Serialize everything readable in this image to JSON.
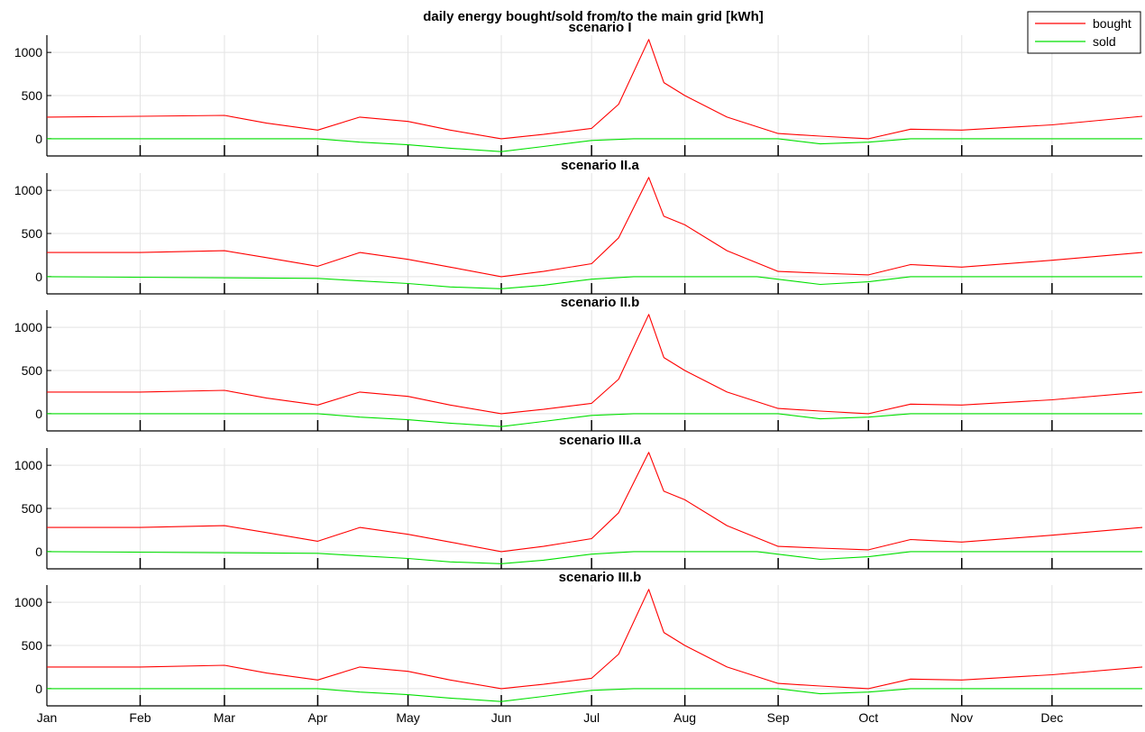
{
  "figure_title": "daily energy bought/sold from/to the main grid [kWh]",
  "legend": [
    {
      "label": "bought",
      "color": "#ff0000"
    },
    {
      "label": "sold",
      "color": "#00e000"
    }
  ],
  "x_ticks": [
    "Jan",
    "Feb",
    "Mar",
    "Apr",
    "May",
    "Jun",
    "Jul",
    "Aug",
    "Sep",
    "Oct",
    "Nov",
    "Dec"
  ],
  "y_ticks": [
    "0",
    "500",
    "1000"
  ],
  "chart_data": [
    {
      "type": "line",
      "title": "scenario I",
      "ylim": [
        -200,
        1200
      ],
      "yticks": [
        0,
        500,
        1000
      ],
      "grid": true,
      "legend_position": "top-right",
      "x_unit": "month",
      "xlim": [
        "2021-01-01",
        "2021-12-31"
      ],
      "series": [
        {
          "name": "bought",
          "color": "#ff0000",
          "x": [
            "2021-01-01",
            "2021-02-01",
            "2021-03-01",
            "2021-03-15",
            "2021-04-01",
            "2021-04-15",
            "2021-05-01",
            "2021-05-15",
            "2021-06-01",
            "2021-06-15",
            "2021-07-01",
            "2021-07-10",
            "2021-07-20",
            "2021-07-25",
            "2021-08-01",
            "2021-08-15",
            "2021-09-01",
            "2021-09-15",
            "2021-10-01",
            "2021-10-15",
            "2021-11-01",
            "2021-12-01",
            "2021-12-31"
          ],
          "y": [
            250,
            260,
            270,
            180,
            100,
            250,
            200,
            100,
            0,
            50,
            120,
            400,
            1150,
            650,
            500,
            250,
            60,
            30,
            0,
            110,
            100,
            160,
            260
          ]
        },
        {
          "name": "sold",
          "color": "#00e000",
          "x": [
            "2021-01-01",
            "2021-04-01",
            "2021-04-15",
            "2021-05-01",
            "2021-05-15",
            "2021-06-01",
            "2021-06-15",
            "2021-07-01",
            "2021-07-15",
            "2021-09-01",
            "2021-09-15",
            "2021-10-01",
            "2021-10-15",
            "2021-12-31"
          ],
          "y": [
            0,
            0,
            -40,
            -70,
            -110,
            -150,
            -90,
            -20,
            0,
            0,
            -60,
            -40,
            0,
            0
          ]
        }
      ]
    },
    {
      "type": "line",
      "title": "scenario II.a",
      "ylim": [
        -200,
        1200
      ],
      "yticks": [
        0,
        500,
        1000
      ],
      "grid": true,
      "x_unit": "month",
      "xlim": [
        "2021-01-01",
        "2021-12-31"
      ],
      "series": [
        {
          "name": "bought",
          "color": "#ff0000",
          "x": [
            "2021-01-01",
            "2021-02-01",
            "2021-03-01",
            "2021-03-15",
            "2021-04-01",
            "2021-04-15",
            "2021-05-01",
            "2021-05-15",
            "2021-06-01",
            "2021-06-15",
            "2021-07-01",
            "2021-07-10",
            "2021-07-20",
            "2021-07-25",
            "2021-08-01",
            "2021-08-15",
            "2021-09-01",
            "2021-09-15",
            "2021-10-01",
            "2021-10-15",
            "2021-11-01",
            "2021-12-01",
            "2021-12-31"
          ],
          "y": [
            280,
            280,
            300,
            220,
            120,
            280,
            200,
            110,
            0,
            60,
            150,
            450,
            1150,
            700,
            600,
            300,
            60,
            40,
            20,
            140,
            110,
            190,
            280
          ]
        },
        {
          "name": "sold",
          "color": "#00e000",
          "x": [
            "2021-01-01",
            "2021-04-01",
            "2021-04-15",
            "2021-05-01",
            "2021-05-15",
            "2021-06-01",
            "2021-06-15",
            "2021-07-01",
            "2021-07-15",
            "2021-08-25",
            "2021-09-15",
            "2021-10-01",
            "2021-10-15",
            "2021-12-31"
          ],
          "y": [
            0,
            -20,
            -50,
            -80,
            -120,
            -140,
            -100,
            -30,
            0,
            0,
            -90,
            -60,
            0,
            0
          ]
        }
      ]
    },
    {
      "type": "line",
      "title": "scenario II.b",
      "ylim": [
        -200,
        1200
      ],
      "yticks": [
        0,
        500,
        1000
      ],
      "grid": true,
      "x_unit": "month",
      "xlim": [
        "2021-01-01",
        "2021-12-31"
      ],
      "series": [
        {
          "name": "bought",
          "color": "#ff0000",
          "x": [
            "2021-01-01",
            "2021-02-01",
            "2021-03-01",
            "2021-03-15",
            "2021-04-01",
            "2021-04-15",
            "2021-05-01",
            "2021-05-15",
            "2021-06-01",
            "2021-06-15",
            "2021-07-01",
            "2021-07-10",
            "2021-07-20",
            "2021-07-25",
            "2021-08-01",
            "2021-08-15",
            "2021-09-01",
            "2021-09-15",
            "2021-10-01",
            "2021-10-15",
            "2021-11-01",
            "2021-12-01",
            "2021-12-31"
          ],
          "y": [
            250,
            250,
            270,
            180,
            100,
            250,
            200,
            100,
            0,
            50,
            120,
            400,
            1150,
            650,
            500,
            250,
            60,
            30,
            0,
            110,
            100,
            160,
            250
          ]
        },
        {
          "name": "sold",
          "color": "#00e000",
          "x": [
            "2021-01-01",
            "2021-04-01",
            "2021-04-15",
            "2021-05-01",
            "2021-05-15",
            "2021-06-01",
            "2021-06-15",
            "2021-07-01",
            "2021-07-15",
            "2021-09-01",
            "2021-09-15",
            "2021-10-01",
            "2021-10-15",
            "2021-12-31"
          ],
          "y": [
            0,
            0,
            -40,
            -70,
            -110,
            -150,
            -90,
            -20,
            0,
            0,
            -60,
            -40,
            0,
            0
          ]
        }
      ]
    },
    {
      "type": "line",
      "title": "scenario III.a",
      "ylim": [
        -200,
        1200
      ],
      "yticks": [
        0,
        500,
        1000
      ],
      "grid": true,
      "x_unit": "month",
      "xlim": [
        "2021-01-01",
        "2021-12-31"
      ],
      "series": [
        {
          "name": "bought",
          "color": "#ff0000",
          "x": [
            "2021-01-01",
            "2021-02-01",
            "2021-03-01",
            "2021-03-15",
            "2021-04-01",
            "2021-04-15",
            "2021-05-01",
            "2021-05-15",
            "2021-06-01",
            "2021-06-15",
            "2021-07-01",
            "2021-07-10",
            "2021-07-20",
            "2021-07-25",
            "2021-08-01",
            "2021-08-15",
            "2021-09-01",
            "2021-09-15",
            "2021-10-01",
            "2021-10-15",
            "2021-11-01",
            "2021-12-01",
            "2021-12-31"
          ],
          "y": [
            280,
            280,
            300,
            220,
            120,
            280,
            200,
            110,
            0,
            60,
            150,
            450,
            1150,
            700,
            600,
            300,
            60,
            40,
            20,
            140,
            110,
            190,
            280
          ]
        },
        {
          "name": "sold",
          "color": "#00e000",
          "x": [
            "2021-01-01",
            "2021-04-01",
            "2021-04-15",
            "2021-05-01",
            "2021-05-15",
            "2021-06-01",
            "2021-06-15",
            "2021-07-01",
            "2021-07-15",
            "2021-08-25",
            "2021-09-15",
            "2021-10-01",
            "2021-10-15",
            "2021-12-31"
          ],
          "y": [
            0,
            -20,
            -50,
            -80,
            -120,
            -140,
            -100,
            -30,
            0,
            0,
            -90,
            -60,
            0,
            0
          ]
        }
      ]
    },
    {
      "type": "line",
      "title": "scenario III.b",
      "ylim": [
        -200,
        1200
      ],
      "yticks": [
        0,
        500,
        1000
      ],
      "grid": true,
      "x_unit": "month",
      "xlim": [
        "2021-01-01",
        "2021-12-31"
      ],
      "series": [
        {
          "name": "bought",
          "color": "#ff0000",
          "x": [
            "2021-01-01",
            "2021-02-01",
            "2021-03-01",
            "2021-03-15",
            "2021-04-01",
            "2021-04-15",
            "2021-05-01",
            "2021-05-15",
            "2021-06-01",
            "2021-06-15",
            "2021-07-01",
            "2021-07-10",
            "2021-07-20",
            "2021-07-25",
            "2021-08-01",
            "2021-08-15",
            "2021-09-01",
            "2021-09-15",
            "2021-10-01",
            "2021-10-15",
            "2021-11-01",
            "2021-12-01",
            "2021-12-31"
          ],
          "y": [
            250,
            250,
            270,
            180,
            100,
            250,
            200,
            100,
            0,
            50,
            120,
            400,
            1150,
            650,
            500,
            250,
            60,
            30,
            0,
            110,
            100,
            160,
            250
          ]
        },
        {
          "name": "sold",
          "color": "#00e000",
          "x": [
            "2021-01-01",
            "2021-04-01",
            "2021-04-15",
            "2021-05-01",
            "2021-05-15",
            "2021-06-01",
            "2021-06-15",
            "2021-07-01",
            "2021-07-15",
            "2021-09-01",
            "2021-09-15",
            "2021-10-01",
            "2021-10-15",
            "2021-12-31"
          ],
          "y": [
            0,
            0,
            -40,
            -70,
            -110,
            -150,
            -90,
            -20,
            0,
            0,
            -60,
            -40,
            0,
            0
          ]
        }
      ]
    }
  ]
}
